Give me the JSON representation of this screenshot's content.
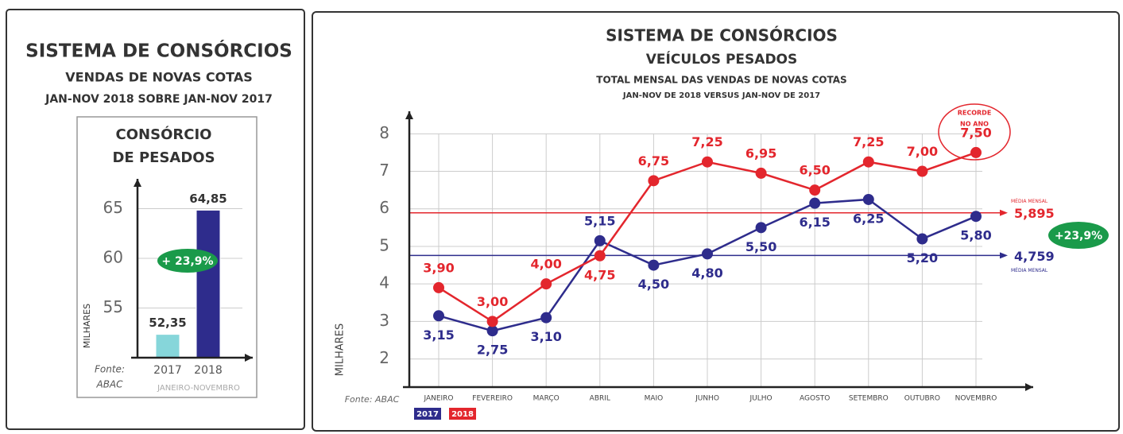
{
  "chart_data": [
    {
      "type": "bar",
      "title": "SISTEMA DE CONSÓRCIOS",
      "subtitle": "VENDAS DE NOVAS COTAS",
      "period": "JAN-NOV 2018 SOBRE JAN-NOV 2017",
      "inner_title": [
        "CONSÓRCIO",
        "DE PESADOS"
      ],
      "y_label": "MILHARES",
      "x_label": "JANEIRO-NOVEMBRO",
      "source": [
        "Fonte:",
        "ABAC"
      ],
      "categories": [
        "2017",
        "2018"
      ],
      "values": [
        52.35,
        64.85
      ],
      "value_labels": [
        "52,35",
        "64,85"
      ],
      "colors": [
        "#86d6da",
        "#2e2c8c"
      ],
      "ylim": [
        50,
        68
      ],
      "yticks": [
        55,
        60,
        65
      ],
      "grid": true,
      "annotation": "+ 23,9%"
    },
    {
      "type": "line",
      "title": "SISTEMA DE CONSÓRCIOS",
      "subtitle": "VEÍCULOS PESADOS",
      "subtitle2": "TOTAL MENSAL DAS VENDAS DE NOVAS COTAS",
      "period": "JAN-NOV DE 2018 VERSUS JAN-NOV DE 2017",
      "y_label": "MILHARES",
      "source": "Fonte: ABAC",
      "categories": [
        "JANEIRO",
        "FEVEREIRO",
        "MARÇO",
        "ABRIL",
        "MAIO",
        "JUNHO",
        "JULHO",
        "AGOSTO",
        "SETEMBRO",
        "OUTUBRO",
        "NOVEMBRO"
      ],
      "series": [
        {
          "name": "2017",
          "color": "#2e2c8c",
          "values": [
            3.15,
            2.75,
            3.1,
            5.15,
            4.5,
            4.8,
            5.5,
            6.15,
            6.25,
            5.2,
            5.8
          ],
          "value_labels": [
            "3,15",
            "2,75",
            "3,10",
            "5,15",
            "4,50",
            "4,80",
            "5,50",
            "6,15",
            "6,25",
            "5,20",
            "5,80"
          ]
        },
        {
          "name": "2018",
          "color": "#e3262d",
          "values": [
            3.9,
            3.0,
            4.0,
            4.75,
            6.75,
            7.25,
            6.95,
            6.5,
            7.25,
            7.0,
            7.5
          ],
          "value_labels": [
            "3,90",
            "3,00",
            "4,00",
            "4,75",
            "6,75",
            "7,25",
            "6,95",
            "6,50",
            "7,25",
            "7,00",
            "7,50"
          ]
        }
      ],
      "reference_lines": [
        {
          "name": "MÉDIA MENSAL",
          "value": 5.895,
          "label": "5,895",
          "color": "#e3262d"
        },
        {
          "name": "MÉDIA MENSAL",
          "value": 4.759,
          "label": "4,759",
          "color": "#2e2c8c"
        }
      ],
      "ylim": [
        1.25,
        8.6
      ],
      "yticks": [
        2,
        3,
        4,
        5,
        6,
        7,
        8
      ],
      "grid": true,
      "annotations": {
        "record": [
          "RECORDE",
          "NO ANO"
        ],
        "growth": "+23,9%"
      }
    }
  ]
}
